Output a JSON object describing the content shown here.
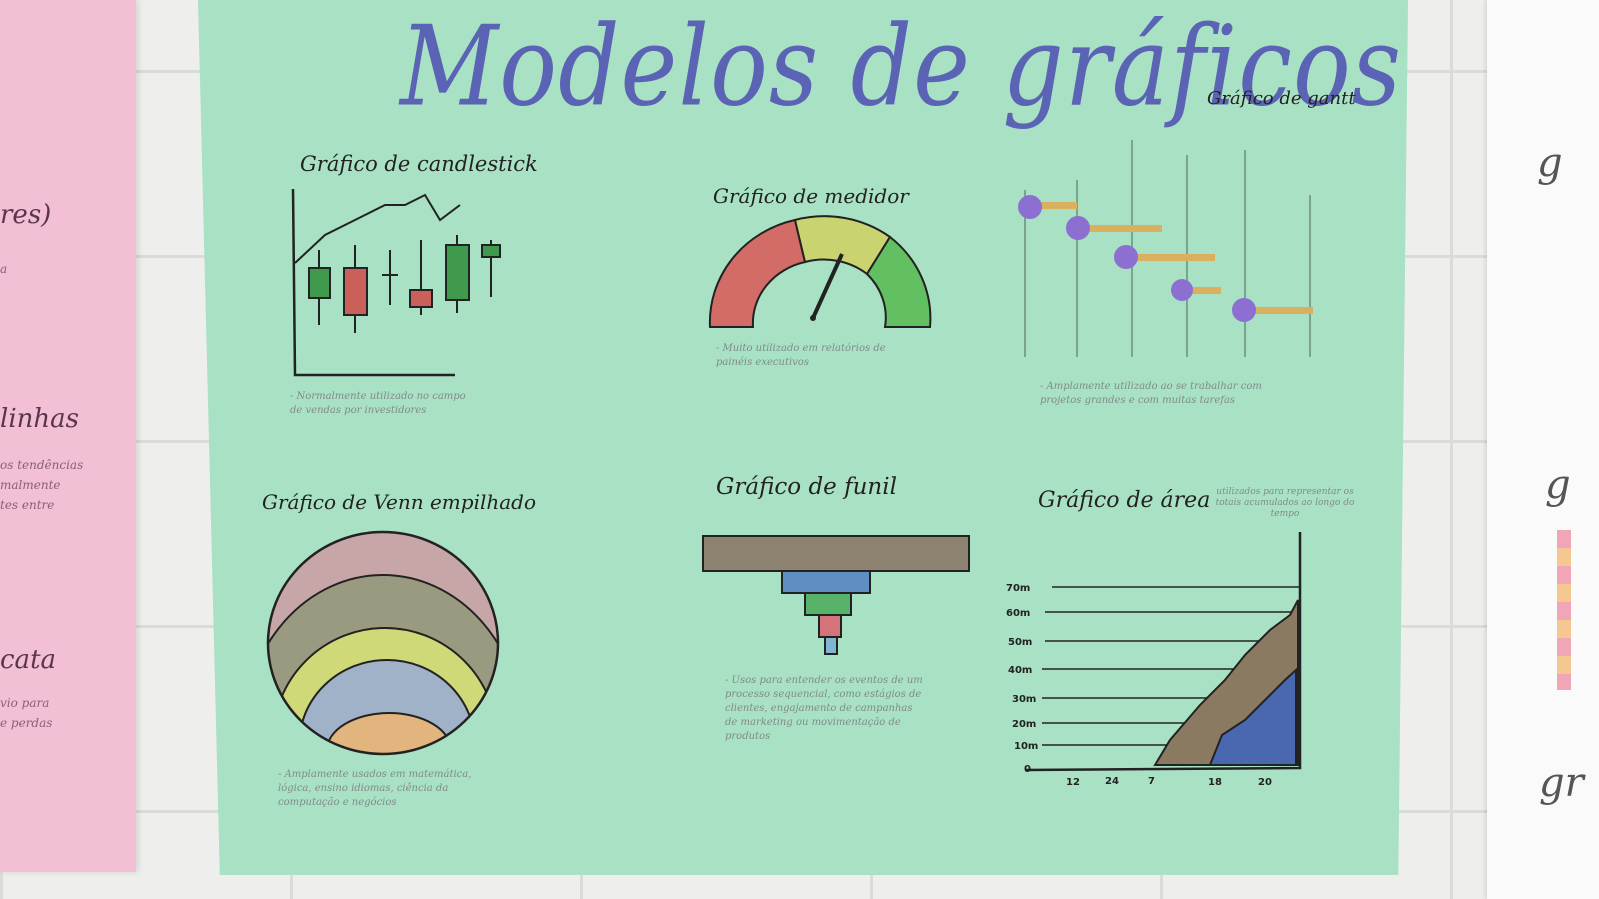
{
  "poster": {
    "title": "Modelos de gráficos",
    "charts": {
      "candlestick": {
        "title": "Gráfico de candlestick",
        "note": "- Normalmente utilizado no campo de vendas por investidores"
      },
      "gauge": {
        "title": "Gráfico de medidor",
        "note": "- Muito utilizado em relatórios de painéis executivos"
      },
      "gantt": {
        "title": "Gráfico de gantt",
        "note": "- Amplamente utilizado ao se trabalhar com projetos grandes e com muitas tarefas"
      },
      "venn": {
        "title": "Gráfico de Venn empilhado",
        "note": "- Amplamente usados em matemática, lógica, ensino idiomas, ciência da computação e negócios"
      },
      "funnel": {
        "title": "Gráfico de funil",
        "note": "- Usos para entender os eventos de um processo sequencial, como estágios de clientes, engajamento de campanhas de marketing ou movimentação de produtos"
      },
      "area": {
        "title": "Gráfico de área",
        "note": "utilizados para representar os totais acumulados ao longo do tempo",
        "y_ticks": [
          "70m",
          "60m",
          "50m",
          "40m",
          "30m",
          "20m",
          "10m",
          "0"
        ],
        "x_ticks": [
          "12",
          "24",
          "7",
          "18",
          "20"
        ]
      }
    }
  },
  "left_sheet": {
    "lines": [
      "res)",
      "linhas",
      "cata"
    ],
    "small": [
      "a",
      "os tendências",
      "malmente",
      "tes entre",
      "vio para",
      "e perdas"
    ]
  },
  "right_sheet": {
    "letters": [
      "g",
      "g",
      "gr"
    ]
  },
  "colors": {
    "poster_bg": "#a9e1c4",
    "title": "#5b63b5",
    "red": "#c9605a",
    "green": "#3f9a4d",
    "purple": "#8c6fd0",
    "orange": "#d8b060",
    "brown": "#8a7a62",
    "blue": "#4a68b0"
  }
}
